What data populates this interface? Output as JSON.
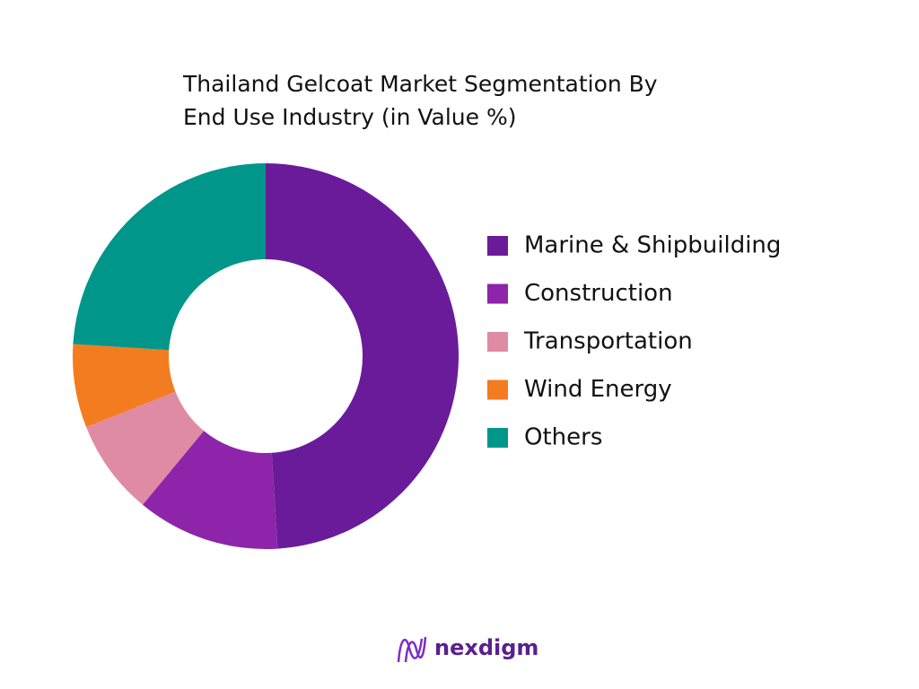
{
  "chart_data": {
    "type": "donut",
    "title": [
      "Thailand Gelcoat Market Segmentation By",
      "End Use Industry (in Value %)"
    ],
    "categories": [
      "Marine & Shipbuilding",
      "Construction",
      "Transportation",
      "Wind Energy",
      "Others"
    ],
    "values": [
      49,
      12,
      8,
      7,
      24
    ],
    "colors": [
      "#6a1b9a",
      "#8e24aa",
      "#e08ba4",
      "#f47c20",
      "#00968a"
    ],
    "legend": "right"
  },
  "brand": "nexdigm"
}
